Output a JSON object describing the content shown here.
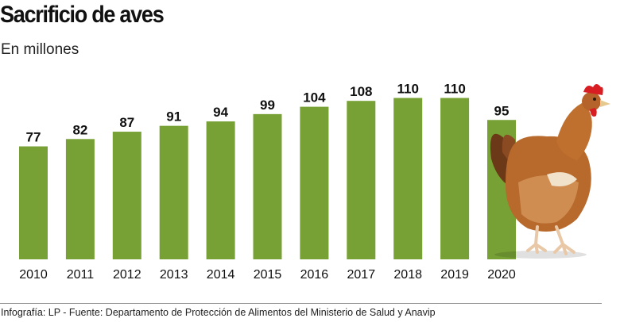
{
  "header": {
    "title": "Sacrificio de aves",
    "subtitle": "En millones"
  },
  "footer": {
    "source": "Infografía: LP - Fuente: Departamento de Protección de Alimentos del Ministerio de Salud y Anavip"
  },
  "colors": {
    "bar": "#77a135",
    "text": "#111111"
  },
  "illustration": {
    "icon": "hen-icon"
  },
  "chart_data": {
    "type": "bar",
    "title": "Sacrificio de aves",
    "ylabel": "En millones",
    "xlabel": "",
    "categories": [
      "2010",
      "2011",
      "2012",
      "2013",
      "2014",
      "2015",
      "2016",
      "2017",
      "2018",
      "2019",
      "2020"
    ],
    "values": [
      77,
      82,
      87,
      91,
      94,
      99,
      104,
      108,
      110,
      110,
      95
    ],
    "value_labels": [
      "77",
      "82",
      "87",
      "91",
      "94",
      "99",
      "104",
      "108",
      "110",
      "110",
      "95"
    ],
    "ylim": [
      0,
      110
    ],
    "grid": false,
    "legend": "none"
  }
}
